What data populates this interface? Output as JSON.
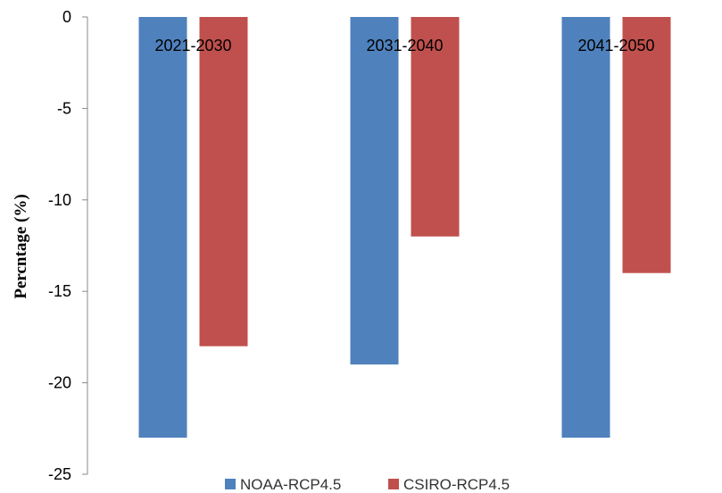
{
  "chart_data": {
    "type": "bar",
    "categories": [
      "2021-2030",
      "2031-2040",
      "2041-2050"
    ],
    "series": [
      {
        "name": "NOAA-RCP4.5",
        "color": "#4f81bd",
        "values": [
          -23,
          -19,
          -23
        ]
      },
      {
        "name": "CSIRO-RCP4.5",
        "color": "#c0504d",
        "values": [
          -18,
          -12,
          -14
        ]
      }
    ],
    "ylabel": "Percntage (%)",
    "xlabel": "",
    "ylim": [
      -25,
      0
    ],
    "yticks": [
      0,
      -5,
      -10,
      -15,
      -20,
      -25
    ],
    "grid": false,
    "legend_position": "bottom"
  }
}
